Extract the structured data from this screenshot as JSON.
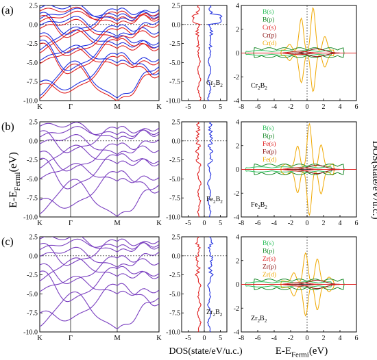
{
  "figure": {
    "shared_ylabel_band": "E-E",
    "shared_ylabel_band_sub": "Fermi",
    "shared_ylabel_band_unit": "(eV)",
    "shared_ylabel_pdos": "DOS(state/eV/u.c.)",
    "shared_xlabel_dos": "DOS(state/eV/u.c.)",
    "shared_xlabel_pdos": "E-E",
    "shared_xlabel_pdos_sub": "Fermi",
    "shared_xlabel_pdos_unit": "(eV)"
  },
  "colors": {
    "spin_up": "#e02020",
    "spin_down": "#2030e0",
    "mixed": "#7a3fc0",
    "B_s": "#2bbf5a",
    "B_p": "#1a8a2a",
    "M_s": "#e02020",
    "M_p": "#8a1010",
    "M_d": "#f0a800"
  },
  "panels": [
    {
      "tag": "(a)",
      "compound_label": "Cr2B2",
      "compound_text": "Cr",
      "compound_sub1": "2",
      "compound_mid": "B",
      "compound_sub2": "2",
      "legend": [
        "B(s)",
        "B(p)",
        "Cr(s)",
        "Cr(p)",
        "Cr(d)"
      ],
      "spin_polarized": true
    },
    {
      "tag": "(b)",
      "compound_label": "Fe2B2",
      "compound_text": "Fe",
      "compound_sub1": "2",
      "compound_mid": "B",
      "compound_sub2": "2",
      "legend": [
        "B(s)",
        "B(p)",
        "Fe(s)",
        "Fe(p)",
        "Fe(d)"
      ],
      "spin_polarized": false
    },
    {
      "tag": "(c)",
      "compound_label": "Zr2B2",
      "compound_text": "Zr",
      "compound_sub1": "2",
      "compound_mid": "B",
      "compound_sub2": "2",
      "legend": [
        "B(s)",
        "B(p)",
        "Zr(s)",
        "Zr(p)",
        "Zr(d)"
      ],
      "spin_polarized": false
    }
  ],
  "chart_data": [
    {
      "type": "line",
      "name": "band structure",
      "x_tick_labels": [
        "K",
        "Γ",
        "M",
        "K"
      ],
      "ylim": [
        -10,
        2.5
      ],
      "y_ticks": [
        2.5,
        0.0,
        -2.5,
        -5.0,
        -7.5,
        -10.0
      ],
      "y_tick_labels": [
        "2.5",
        "0.0",
        "-2.5",
        "-5.0",
        "-7.5",
        "-10.0"
      ],
      "ylabel": "E-EFermi(eV)",
      "fermi_level_line": 0
    },
    {
      "type": "line",
      "name": "total DOS",
      "xlim": [
        -7,
        7
      ],
      "x_ticks": [
        -5,
        0,
        5
      ],
      "x_tick_labels": [
        "-5",
        "0",
        "5"
      ],
      "ylim": [
        -10,
        2.5
      ],
      "y_ticks": [
        2.5,
        0.0,
        -2.5,
        -5.0,
        -7.5,
        -10.0
      ],
      "y_tick_labels": [
        "2.5",
        "0.0",
        "-2.5",
        "-5.0",
        "-7.5",
        "-10.0"
      ],
      "xlabel": "DOS(state/eV/u.c.)"
    },
    {
      "type": "line",
      "name": "partial DOS",
      "xlim": [
        -8,
        6
      ],
      "x_ticks": [
        -8,
        -6,
        -4,
        -2,
        0,
        2,
        4,
        6
      ],
      "x_tick_labels": [
        "-8",
        "-6",
        "-4",
        "-2",
        "0",
        "2",
        "4",
        "6"
      ],
      "ylim": [
        -4,
        4
      ],
      "y_ticks": [
        4,
        2,
        0,
        -2,
        -4
      ],
      "y_tick_labels": [
        "4",
        "2",
        "0",
        "-2",
        "-4"
      ],
      "xlabel": "E-EFermi(eV)",
      "ylabel": "DOS(state/eV/u.c.)",
      "fermi_level_line": 0
    }
  ]
}
